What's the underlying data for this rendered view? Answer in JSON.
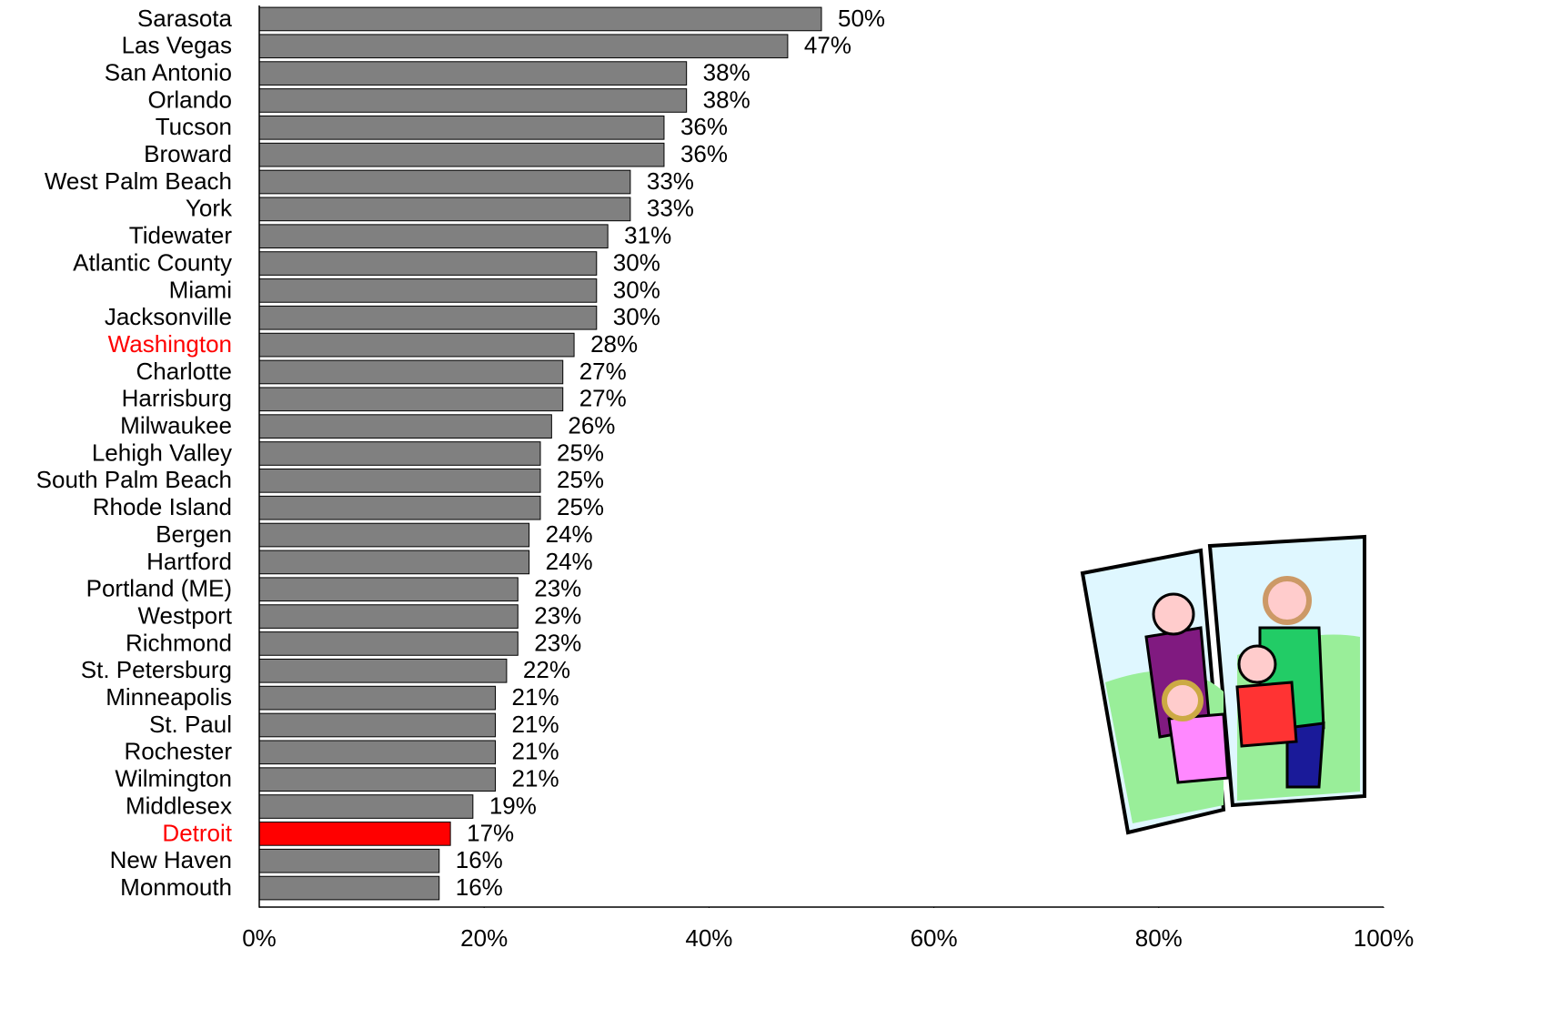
{
  "chart_data": {
    "type": "bar",
    "orientation": "horizontal",
    "categories": [
      "Sarasota",
      "Las Vegas",
      "San Antonio",
      "Orlando",
      "Tucson",
      "Broward",
      "West Palm Beach",
      "York",
      "Tidewater",
      "Atlantic County",
      "Miami",
      "Jacksonville",
      "Washington",
      "Charlotte",
      "Harrisburg",
      "Milwaukee",
      "Lehigh Valley",
      "South Palm Beach",
      "Rhode Island",
      "Bergen",
      "Hartford",
      "Portland (ME)",
      "Westport",
      "Richmond",
      "St. Petersburg",
      "Minneapolis",
      "St. Paul",
      "Rochester",
      "Wilmington",
      "Middlesex",
      "Detroit",
      "New Haven",
      "Monmouth"
    ],
    "values": [
      50,
      47,
      38,
      38,
      36,
      36,
      33,
      33,
      31,
      30,
      30,
      30,
      28,
      27,
      27,
      26,
      25,
      25,
      25,
      24,
      24,
      23,
      23,
      23,
      22,
      21,
      21,
      21,
      21,
      19,
      17,
      16,
      16
    ],
    "value_labels": [
      "50%",
      "47%",
      "38%",
      "38%",
      "36%",
      "36%",
      "33%",
      "33%",
      "31%",
      "30%",
      "30%",
      "30%",
      "28%",
      "27%",
      "27%",
      "26%",
      "25%",
      "25%",
      "25%",
      "24%",
      "24%",
      "23%",
      "23%",
      "23%",
      "22%",
      "21%",
      "21%",
      "21%",
      "21%",
      "19%",
      "17%",
      "16%",
      "16%"
    ],
    "colors": [
      "#808080",
      "#808080",
      "#808080",
      "#808080",
      "#808080",
      "#808080",
      "#808080",
      "#808080",
      "#808080",
      "#808080",
      "#808080",
      "#808080",
      "#808080",
      "#808080",
      "#808080",
      "#808080",
      "#808080",
      "#808080",
      "#808080",
      "#808080",
      "#808080",
      "#808080",
      "#808080",
      "#808080",
      "#808080",
      "#808080",
      "#808080",
      "#808080",
      "#808080",
      "#808080",
      "#ff0000",
      "#808080",
      "#808080"
    ],
    "label_colors": [
      "#000000",
      "#000000",
      "#000000",
      "#000000",
      "#000000",
      "#000000",
      "#000000",
      "#000000",
      "#000000",
      "#000000",
      "#000000",
      "#000000",
      "#ff0000",
      "#000000",
      "#000000",
      "#000000",
      "#000000",
      "#000000",
      "#000000",
      "#000000",
      "#000000",
      "#000000",
      "#000000",
      "#000000",
      "#000000",
      "#000000",
      "#000000",
      "#000000",
      "#000000",
      "#000000",
      "#ff0000",
      "#000000",
      "#000000"
    ],
    "xlim": [
      0,
      100
    ],
    "xticks": [
      {
        "value": 0,
        "label": "0%"
      },
      {
        "value": 20,
        "label": "20%"
      },
      {
        "value": 40,
        "label": "40%"
      },
      {
        "value": 60,
        "label": "60%"
      },
      {
        "value": 80,
        "label": "80%"
      },
      {
        "value": 100,
        "label": "100%"
      }
    ],
    "grid": false
  }
}
